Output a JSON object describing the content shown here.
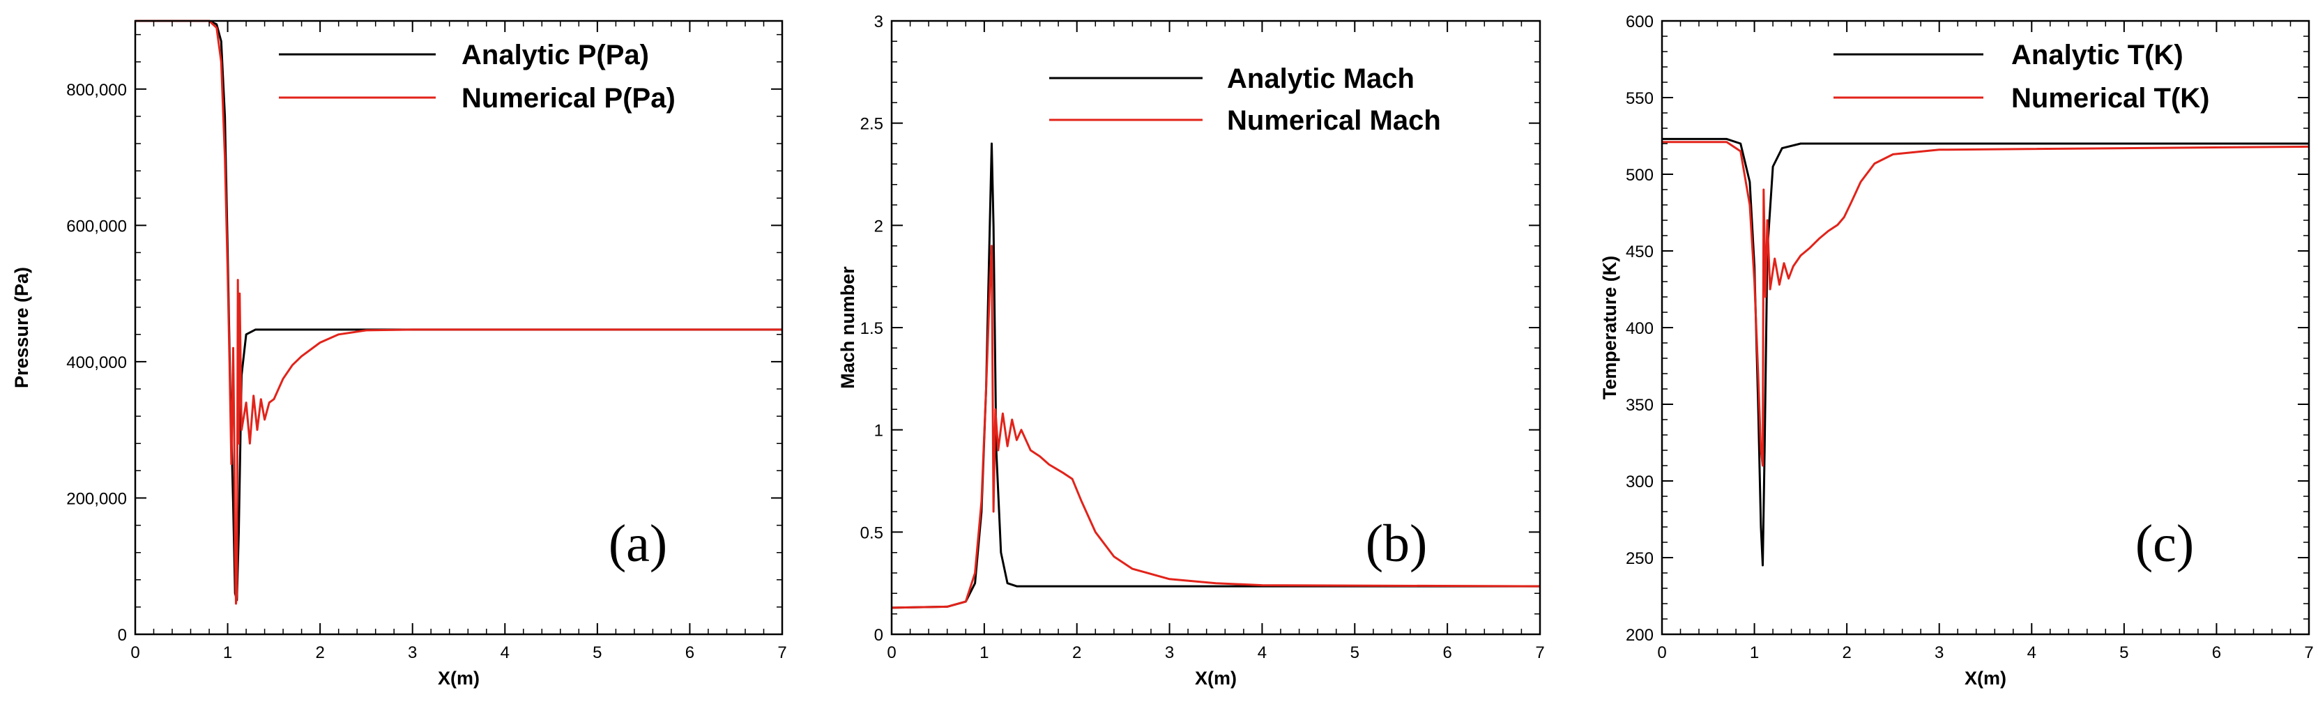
{
  "chart_data": [
    {
      "type": "line",
      "panel_label": "(a)",
      "xlabel": "X(m)",
      "ylabel": "Pressure (Pa)",
      "xlim": [
        0,
        7
      ],
      "ylim": [
        0,
        900000
      ],
      "x_ticks": [
        0,
        1,
        2,
        3,
        4,
        5,
        6,
        7
      ],
      "x_tick_labels": [
        "0",
        "1",
        "2",
        "3",
        "4",
        "5",
        "6",
        "7"
      ],
      "y_ticks": [
        0,
        200000,
        400000,
        600000,
        800000
      ],
      "y_tick_labels": [
        "0",
        "200,000",
        "400,000",
        "600,000",
        "800,000"
      ],
      "legend_position": "top-right",
      "series": [
        {
          "name": "Analytic P(Pa)",
          "color": "#000000",
          "points": [
            [
              0,
              900000
            ],
            [
              0.8,
              900000
            ],
            [
              0.88,
              895000
            ],
            [
              0.93,
              870000
            ],
            [
              0.97,
              760000
            ],
            [
              1.0,
              560000
            ],
            [
              1.03,
              350000
            ],
            [
              1.06,
              190000
            ],
            [
              1.08,
              60000
            ],
            [
              1.1,
              50000
            ],
            [
              1.12,
              150000
            ],
            [
              1.15,
              380000
            ],
            [
              1.2,
              440000
            ],
            [
              1.3,
              447000
            ],
            [
              2.5,
              447000
            ],
            [
              7,
              447000
            ]
          ]
        },
        {
          "name": "Numerical P(Pa)",
          "color": "#e2231a",
          "points": [
            [
              0,
              900000
            ],
            [
              0.8,
              900000
            ],
            [
              0.88,
              890000
            ],
            [
              0.93,
              840000
            ],
            [
              0.97,
              700000
            ],
            [
              1.0,
              530000
            ],
            [
              1.02,
              400000
            ],
            [
              1.04,
              250000
            ],
            [
              1.06,
              420000
            ],
            [
              1.07,
              300000
            ],
            [
              1.08,
              120000
            ],
            [
              1.09,
              45000
            ],
            [
              1.1,
              60000
            ],
            [
              1.11,
              520000
            ],
            [
              1.12,
              280000
            ],
            [
              1.13,
              500000
            ],
            [
              1.15,
              300000
            ],
            [
              1.2,
              340000
            ],
            [
              1.24,
              280000
            ],
            [
              1.28,
              350000
            ],
            [
              1.32,
              300000
            ],
            [
              1.36,
              345000
            ],
            [
              1.4,
              315000
            ],
            [
              1.45,
              340000
            ],
            [
              1.5,
              345000
            ],
            [
              1.55,
              360000
            ],
            [
              1.6,
              375000
            ],
            [
              1.7,
              395000
            ],
            [
              1.8,
              408000
            ],
            [
              2.0,
              428000
            ],
            [
              2.2,
              440000
            ],
            [
              2.5,
              446000
            ],
            [
              3.0,
              447000
            ],
            [
              7,
              447000
            ]
          ]
        }
      ]
    },
    {
      "type": "line",
      "panel_label": "(b)",
      "xlabel": "X(m)",
      "ylabel": "Mach number",
      "xlim": [
        0,
        7
      ],
      "ylim": [
        0,
        3
      ],
      "x_ticks": [
        0,
        1,
        2,
        3,
        4,
        5,
        6,
        7
      ],
      "x_tick_labels": [
        "0",
        "1",
        "2",
        "3",
        "4",
        "5",
        "6",
        "7"
      ],
      "y_ticks": [
        0,
        0.5,
        1,
        1.5,
        2,
        2.5,
        3
      ],
      "y_tick_labels": [
        "0",
        "0.5",
        "1",
        "1.5",
        "2",
        "2.5",
        "3"
      ],
      "legend_position": "top-right",
      "series": [
        {
          "name": "Analytic Mach",
          "color": "#000000",
          "points": [
            [
              0,
              0.13
            ],
            [
              0.6,
              0.135
            ],
            [
              0.8,
              0.16
            ],
            [
              0.9,
              0.25
            ],
            [
              0.97,
              0.6
            ],
            [
              1.02,
              1.2
            ],
            [
              1.06,
              2.0
            ],
            [
              1.08,
              2.4
            ],
            [
              1.1,
              2.0
            ],
            [
              1.13,
              0.9
            ],
            [
              1.18,
              0.4
            ],
            [
              1.25,
              0.25
            ],
            [
              1.35,
              0.235
            ],
            [
              2.0,
              0.235
            ],
            [
              7,
              0.235
            ]
          ]
        },
        {
          "name": "Numerical Mach",
          "color": "#e2231a",
          "points": [
            [
              0,
              0.13
            ],
            [
              0.6,
              0.135
            ],
            [
              0.8,
              0.16
            ],
            [
              0.9,
              0.3
            ],
            [
              0.97,
              0.65
            ],
            [
              1.02,
              1.2
            ],
            [
              1.06,
              1.7
            ],
            [
              1.08,
              1.9
            ],
            [
              1.1,
              0.6
            ],
            [
              1.12,
              1.1
            ],
            [
              1.15,
              0.9
            ],
            [
              1.2,
              1.08
            ],
            [
              1.25,
              0.92
            ],
            [
              1.3,
              1.05
            ],
            [
              1.35,
              0.95
            ],
            [
              1.4,
              1.0
            ],
            [
              1.5,
              0.9
            ],
            [
              1.6,
              0.87
            ],
            [
              1.7,
              0.83
            ],
            [
              1.85,
              0.79
            ],
            [
              1.95,
              0.76
            ],
            [
              2.05,
              0.65
            ],
            [
              2.2,
              0.5
            ],
            [
              2.4,
              0.38
            ],
            [
              2.6,
              0.32
            ],
            [
              3.0,
              0.27
            ],
            [
              3.5,
              0.25
            ],
            [
              4.0,
              0.24
            ],
            [
              7,
              0.235
            ]
          ]
        }
      ]
    },
    {
      "type": "line",
      "panel_label": "(c)",
      "xlabel": "X(m)",
      "ylabel": "Temperature (K)",
      "xlim": [
        0,
        7
      ],
      "ylim": [
        200,
        600
      ],
      "x_ticks": [
        0,
        1,
        2,
        3,
        4,
        5,
        6,
        7
      ],
      "x_tick_labels": [
        "0",
        "1",
        "2",
        "3",
        "4",
        "5",
        "6",
        "7"
      ],
      "y_ticks": [
        200,
        250,
        300,
        350,
        400,
        450,
        500,
        550,
        600
      ],
      "y_tick_labels": [
        "200",
        "250",
        "300",
        "350",
        "400",
        "450",
        "500",
        "550",
        "600"
      ],
      "legend_position": "top-right",
      "series": [
        {
          "name": "Analytic T(K)",
          "color": "#000000",
          "points": [
            [
              0,
              523
            ],
            [
              0.7,
              523
            ],
            [
              0.85,
              520
            ],
            [
              0.95,
              495
            ],
            [
              1.0,
              440
            ],
            [
              1.04,
              350
            ],
            [
              1.07,
              270
            ],
            [
              1.09,
              245
            ],
            [
              1.11,
              320
            ],
            [
              1.14,
              450
            ],
            [
              1.2,
              505
            ],
            [
              1.3,
              517
            ],
            [
              1.5,
              520
            ],
            [
              7,
              520
            ]
          ]
        },
        {
          "name": "Numerical T(K)",
          "color": "#e2231a",
          "points": [
            [
              0,
              521
            ],
            [
              0.7,
              521
            ],
            [
              0.85,
              515
            ],
            [
              0.95,
              480
            ],
            [
              1.0,
              430
            ],
            [
              1.04,
              370
            ],
            [
              1.07,
              320
            ],
            [
              1.09,
              310
            ],
            [
              1.1,
              490
            ],
            [
              1.12,
              420
            ],
            [
              1.14,
              470
            ],
            [
              1.17,
              425
            ],
            [
              1.22,
              445
            ],
            [
              1.27,
              428
            ],
            [
              1.32,
              442
            ],
            [
              1.37,
              432
            ],
            [
              1.42,
              440
            ],
            [
              1.5,
              447
            ],
            [
              1.6,
              452
            ],
            [
              1.7,
              458
            ],
            [
              1.8,
              463
            ],
            [
              1.9,
              467
            ],
            [
              1.97,
              472
            ],
            [
              2.05,
              482
            ],
            [
              2.15,
              495
            ],
            [
              2.3,
              507
            ],
            [
              2.5,
              513
            ],
            [
              3.0,
              516
            ],
            [
              7,
              518
            ]
          ]
        }
      ]
    }
  ]
}
